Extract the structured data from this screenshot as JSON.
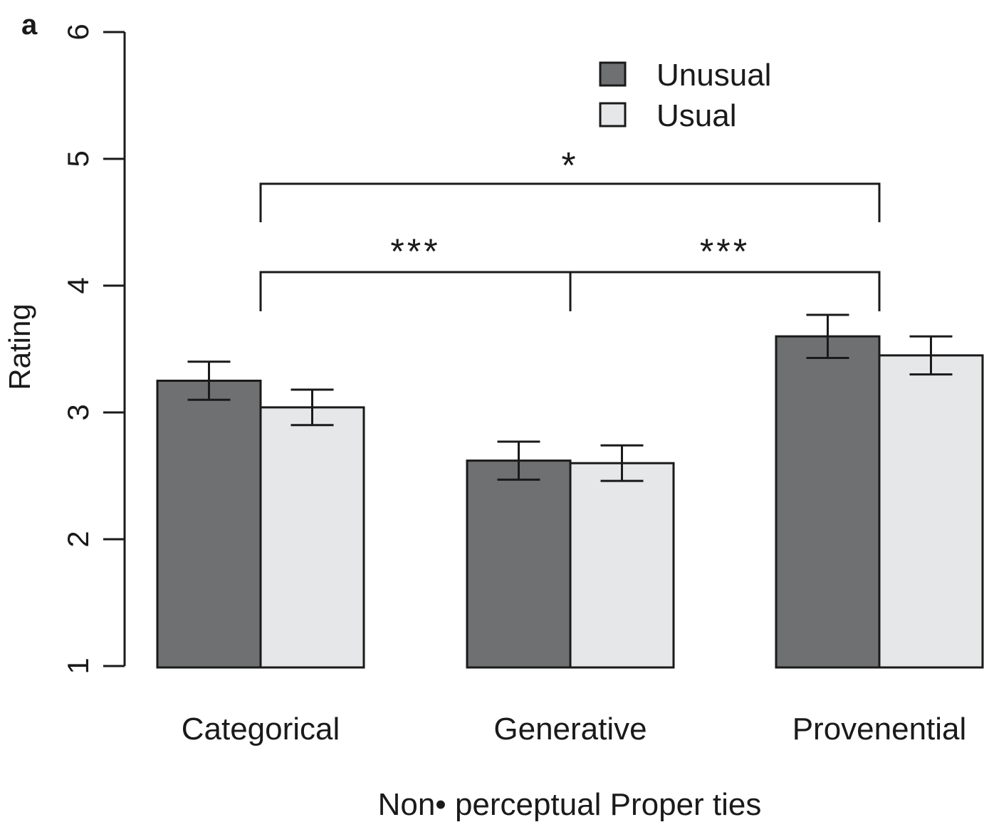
{
  "panel_label": "a",
  "chart_data": {
    "type": "bar",
    "title": "",
    "xlabel": "Non• perceptual Proper ties",
    "ylabel": "Rating",
    "ylim": [
      1,
      6
    ],
    "yticks": [
      "1",
      "2",
      "3",
      "4",
      "5",
      "6"
    ],
    "categories": [
      "Categorical",
      "Generative",
      "Provenential"
    ],
    "series": [
      {
        "name": "Unusual",
        "color": "#6f7072",
        "values": [
          3.25,
          2.62,
          3.6
        ],
        "errors": [
          0.15,
          0.15,
          0.17
        ]
      },
      {
        "name": "Usual",
        "color": "#e6e7e8",
        "values": [
          3.04,
          2.6,
          3.45
        ],
        "errors": [
          0.14,
          0.14,
          0.15
        ]
      }
    ],
    "legend": {
      "position": "top-right"
    },
    "significance": [
      {
        "from": "Categorical",
        "to": "Provenential",
        "label": "*",
        "level": 4.8,
        "drop_to": 4.5
      },
      {
        "from": "Categorical",
        "to": "Generative",
        "label": "***",
        "level": 4.1,
        "drop_to": 3.8
      },
      {
        "from": "Generative",
        "to": "Provenential",
        "label": "***",
        "level": 4.1,
        "drop_to": 3.8
      }
    ]
  }
}
